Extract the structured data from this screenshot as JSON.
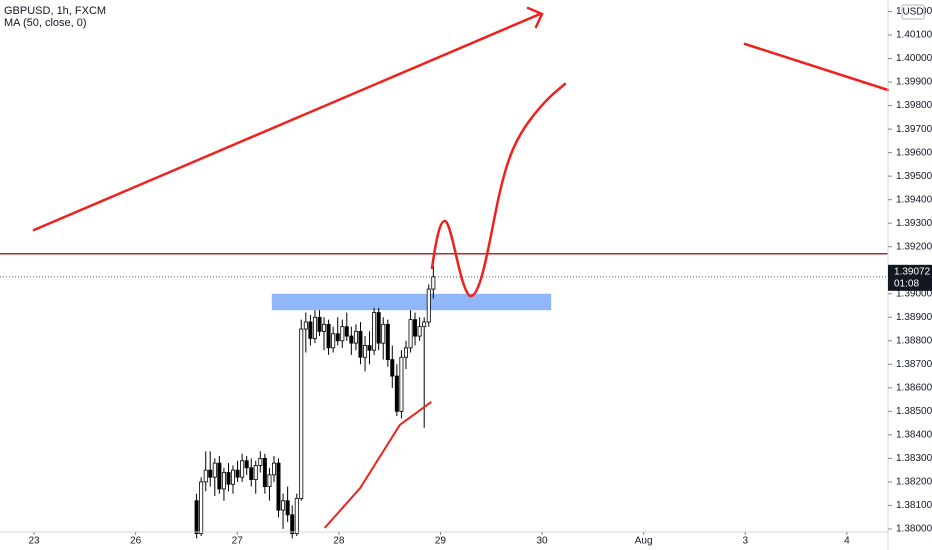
{
  "chart_data": {
    "type": "candlestick",
    "title": "GBPUSD, 1h, FXCM",
    "indicator": "MA (50, close, 0)",
    "currency": "USD",
    "countdown": "01:08",
    "up_color": "#ffffff",
    "down_color": "#000000",
    "x": [
      1.6,
      1.645,
      1.69,
      1.734,
      1.779,
      1.824,
      1.869,
      1.914,
      1.958,
      2.003,
      2.048,
      2.093,
      2.138,
      2.182,
      2.227,
      2.272,
      2.317,
      2.362,
      2.406,
      2.451,
      2.496,
      2.541,
      2.586,
      2.63,
      2.675,
      2.72,
      2.765,
      2.81,
      2.854,
      2.899,
      2.944,
      2.989,
      3.034,
      3.078,
      3.123,
      3.168,
      3.213,
      3.258,
      3.302,
      3.347,
      3.392,
      3.437,
      3.482,
      3.526,
      3.571,
      3.616,
      3.661,
      3.706,
      3.75,
      3.795,
      3.84,
      3.885,
      3.93
    ],
    "open": [
      1.3812,
      1.3798,
      1.382,
      1.3825,
      1.3822,
      1.3828,
      1.3817,
      1.3824,
      1.3819,
      1.3825,
      1.3822,
      1.3829,
      1.3826,
      1.3821,
      1.3827,
      1.383,
      1.3818,
      1.3823,
      1.3828,
      1.3808,
      1.3812,
      1.3806,
      1.3798,
      1.3813,
      1.3885,
      1.3888,
      1.3881,
      1.389,
      1.3884,
      1.3887,
      1.3877,
      1.3883,
      1.388,
      1.3886,
      1.3882,
      1.3879,
      1.3884,
      1.3873,
      1.3878,
      1.3876,
      1.3892,
      1.3879,
      1.3887,
      1.3872,
      1.3865,
      1.385,
      1.3873,
      1.3877,
      1.3889,
      1.3882,
      1.3886,
      1.3888,
      1.3902
    ],
    "high": [
      1.3815,
      1.3822,
      1.3833,
      1.3833,
      1.383,
      1.3831,
      1.3826,
      1.3828,
      1.3827,
      1.3829,
      1.3832,
      1.3831,
      1.383,
      1.3829,
      1.3833,
      1.3832,
      1.3826,
      1.3831,
      1.383,
      1.3815,
      1.3818,
      1.381,
      1.3815,
      1.3889,
      1.3892,
      1.3891,
      1.3893,
      1.3893,
      1.389,
      1.3889,
      1.3886,
      1.389,
      1.3889,
      1.3892,
      1.3886,
      1.3887,
      1.3888,
      1.3882,
      1.3884,
      1.3894,
      1.3894,
      1.389,
      1.3889,
      1.3878,
      1.387,
      1.3876,
      1.388,
      1.3893,
      1.3892,
      1.389,
      1.389,
      1.3904,
      1.3912
    ],
    "low": [
      1.3796,
      1.3797,
      1.3816,
      1.3818,
      1.3814,
      1.3815,
      1.3812,
      1.3816,
      1.3815,
      1.382,
      1.382,
      1.3823,
      1.3818,
      1.3815,
      1.3824,
      1.3815,
      1.3812,
      1.382,
      1.3805,
      1.38,
      1.3803,
      1.3796,
      1.3797,
      1.3812,
      1.3875,
      1.3878,
      1.3879,
      1.3882,
      1.3876,
      1.3874,
      1.3875,
      1.3878,
      1.3877,
      1.388,
      1.3874,
      1.3876,
      1.387,
      1.3867,
      1.387,
      1.3874,
      1.3876,
      1.3872,
      1.3869,
      1.386,
      1.3848,
      1.3847,
      1.3868,
      1.3875,
      1.3878,
      1.388,
      1.3843,
      1.3886,
      1.3898
    ],
    "close": [
      1.3798,
      1.382,
      1.3825,
      1.3822,
      1.3828,
      1.3817,
      1.3824,
      1.3819,
      1.3825,
      1.3822,
      1.3829,
      1.3826,
      1.3821,
      1.3827,
      1.383,
      1.3818,
      1.3823,
      1.3828,
      1.3808,
      1.3812,
      1.3806,
      1.3798,
      1.3813,
      1.3885,
      1.3888,
      1.3881,
      1.389,
      1.3884,
      1.3887,
      1.3877,
      1.3883,
      1.388,
      1.3886,
      1.3882,
      1.3879,
      1.3884,
      1.3873,
      1.3878,
      1.3876,
      1.3892,
      1.3879,
      1.3887,
      1.3872,
      1.3865,
      1.385,
      1.3873,
      1.3877,
      1.3889,
      1.3882,
      1.3886,
      1.3888,
      1.3902,
      1.39072
    ],
    "ma": {
      "color": "#f0201b",
      "x": [
        2.86,
        3.21,
        3.6,
        3.91
      ],
      "values": [
        1.38004,
        1.38174,
        1.38442,
        1.3854
      ]
    },
    "hline": {
      "value": 1.3917,
      "color": "#b22833"
    },
    "zone": {
      "x": [
        2.34,
        5.09
      ],
      "y": [
        1.3893,
        1.39
      ],
      "color": "#90b8f8"
    },
    "last_price": {
      "value": 1.39072,
      "label": "1.39072"
    },
    "xlim": [
      -0.335,
      8.405
    ],
    "ylim": [
      1.37987,
      1.40249
    ],
    "xticks": [
      {
        "value": 0,
        "label": "23"
      },
      {
        "value": 1,
        "label": "26"
      },
      {
        "value": 2,
        "label": "27"
      },
      {
        "value": 3,
        "label": "28"
      },
      {
        "value": 4,
        "label": "29"
      },
      {
        "value": 5,
        "label": "30"
      },
      {
        "value": 6,
        "label": "Aug"
      },
      {
        "value": 7,
        "label": "3"
      },
      {
        "value": 8,
        "label": "4"
      }
    ],
    "yticks": [
      {
        "value": 1.38,
        "label": "1.38000"
      },
      {
        "value": 1.381,
        "label": "1.38100"
      },
      {
        "value": 1.382,
        "label": "1.38200"
      },
      {
        "value": 1.383,
        "label": "1.38300"
      },
      {
        "value": 1.384,
        "label": "1.38400"
      },
      {
        "value": 1.385,
        "label": "1.38500"
      },
      {
        "value": 1.386,
        "label": "1.38600"
      },
      {
        "value": 1.387,
        "label": "1.38700"
      },
      {
        "value": 1.388,
        "label": "1.38800"
      },
      {
        "value": 1.389,
        "label": "1.38900"
      },
      {
        "value": 1.39,
        "label": "1.39000"
      },
      {
        "value": 1.391,
        "label": "1.39100"
      },
      {
        "value": 1.392,
        "label": "1.39200"
      },
      {
        "value": 1.393,
        "label": "1.39300"
      },
      {
        "value": 1.394,
        "label": "1.39400"
      },
      {
        "value": 1.395,
        "label": "1.39500"
      },
      {
        "value": 1.396,
        "label": "1.39600"
      },
      {
        "value": 1.397,
        "label": "1.39700"
      },
      {
        "value": 1.398,
        "label": "1.39800"
      },
      {
        "value": 1.399,
        "label": "1.39900"
      },
      {
        "value": 1.4,
        "label": "1.40000"
      },
      {
        "value": 1.401,
        "label": "1.40100"
      },
      {
        "value": 1.402,
        "label": "1.40200"
      }
    ]
  }
}
